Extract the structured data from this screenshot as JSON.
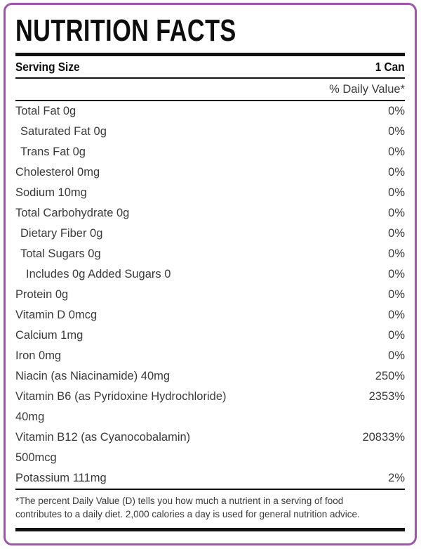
{
  "theme": {
    "border_color": "#9B57A5",
    "rule_color": "#121212",
    "title_color": "#0d0d0d",
    "text_color": "#3a3a3a"
  },
  "header": {
    "title": "NUTRITION FACTS"
  },
  "serving": {
    "label": "Serving Size",
    "value": "1 Can"
  },
  "daily_value_header": "% Daily Value*",
  "nutrients": [
    {
      "label": "Total Fat 0g",
      "value": "0%",
      "indent": 0
    },
    {
      "label": "Saturated Fat 0g",
      "value": "0%",
      "indent": 1
    },
    {
      "label": "Trans Fat 0g",
      "value": "0%",
      "indent": 1
    },
    {
      "label": "Cholesterol 0mg",
      "value": "0%",
      "indent": 0
    },
    {
      "label": "Sodium 10mg",
      "value": "0%",
      "indent": 0
    },
    {
      "label": "Total Carbohydrate 0g",
      "value": "0%",
      "indent": 0
    },
    {
      "label": "Dietary Fiber 0g",
      "value": "0%",
      "indent": 1
    },
    {
      "label": "Total Sugars 0g",
      "value": "0%",
      "indent": 1
    },
    {
      "label": "Includes 0g Added Sugars 0",
      "value": "0%",
      "indent": 2
    },
    {
      "label": "Protein 0g",
      "value": "0%",
      "indent": 0
    },
    {
      "label": "Vitamin D 0mcg",
      "value": "0%",
      "indent": 0
    },
    {
      "label": "Calcium 1mg",
      "value": "0%",
      "indent": 0
    },
    {
      "label": "Iron 0mg",
      "value": "0%",
      "indent": 0
    },
    {
      "label": "Niacin (as Niacinamide) 40mg",
      "value": "250%",
      "indent": 0
    },
    {
      "label": "Vitamin B6 (as Pyridoxine Hydrochloride)\n40mg",
      "value": "2353%",
      "indent": 0
    },
    {
      "label": "Vitamin B12 (as Cyanocobalamin)\n500mcg",
      "value": "20833%",
      "indent": 0
    },
    {
      "label": "Potassium 111mg",
      "value": "2%",
      "indent": 0
    }
  ],
  "footnote": "*The percent Daily Value (D) tells you how much a nutrient in a serving of food contributes to a daily diet. 2,000 calories a day is used for general nutrition advice."
}
